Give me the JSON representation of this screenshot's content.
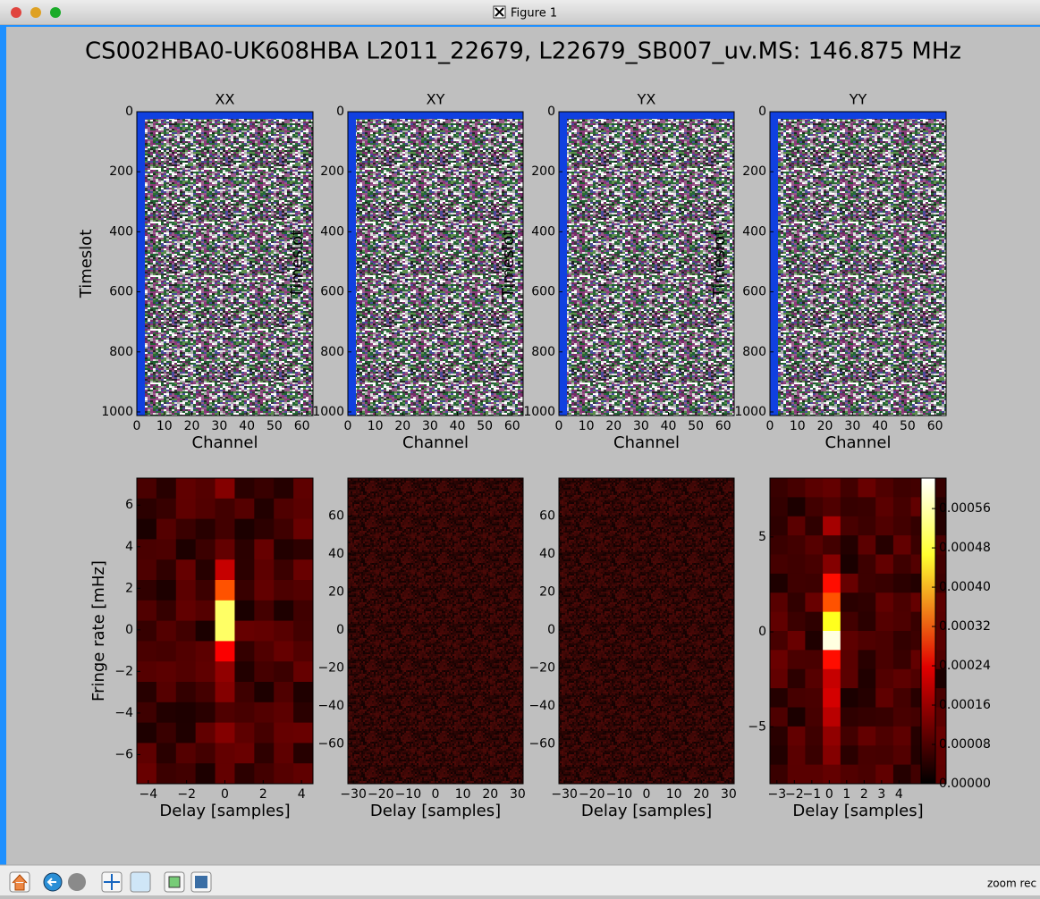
{
  "window": {
    "title": "Figure 1"
  },
  "figure": {
    "title": "CS002HBA0-UK608HBA L2011_22679, L22679_SB007_uv.MS: 146.875 MHz",
    "panels": [
      {
        "title": "XX",
        "xlabel": "Channel",
        "ylabel": "Timeslot",
        "xlim": [
          0,
          64
        ],
        "ylim": [
          1012,
          0
        ],
        "xticks": [
          0,
          10,
          20,
          30,
          40,
          50,
          60
        ],
        "yticks": [
          0,
          200,
          400,
          600,
          800,
          1000
        ]
      },
      {
        "title": "XY",
        "xlabel": "Channel",
        "ylabel": "Timeslot",
        "xlim": [
          0,
          64
        ],
        "ylim": [
          1012,
          0
        ],
        "xticks": [
          0,
          10,
          20,
          30,
          40,
          50,
          60
        ],
        "yticks": [
          0,
          200,
          400,
          600,
          800,
          1000
        ]
      },
      {
        "title": "YX",
        "xlabel": "Channel",
        "ylabel": "Timeslot",
        "xlim": [
          0,
          64
        ],
        "ylim": [
          1012,
          0
        ],
        "xticks": [
          0,
          10,
          20,
          30,
          40,
          50,
          60
        ],
        "yticks": [
          0,
          200,
          400,
          600,
          800,
          1000
        ]
      },
      {
        "title": "YY",
        "xlabel": "Channel",
        "ylabel": "Timeslot",
        "xlim": [
          0,
          64
        ],
        "ylim": [
          1012,
          0
        ],
        "xticks": [
          0,
          10,
          20,
          30,
          40,
          50,
          60
        ],
        "yticks": [
          0,
          200,
          400,
          600,
          800,
          1000
        ]
      },
      {
        "xlabel": "Delay [samples]",
        "ylabel": "Fringe rate [mHz]",
        "xlim": [
          -4.6,
          4.6
        ],
        "ylim": [
          -7.4,
          7.3
        ],
        "xticks": [
          {
            "value": -4,
            "label": "−4"
          },
          {
            "value": -2,
            "label": "−2"
          },
          0,
          2,
          4
        ],
        "yticks": [
          {
            "value": -6,
            "label": "−6"
          },
          {
            "value": -4,
            "label": "−4"
          },
          {
            "value": -2,
            "label": "−2"
          },
          0,
          2,
          4,
          6
        ]
      },
      {
        "xlabel": "Delay [samples]",
        "xlim": [
          -32,
          32
        ],
        "ylim": [
          -81,
          80
        ],
        "xticks": [
          {
            "value": -30,
            "label": "−30"
          },
          {
            "value": -20,
            "label": "−20"
          },
          {
            "value": -10,
            "label": "−10"
          },
          0,
          10,
          20,
          30
        ],
        "yticks": [
          {
            "value": -60,
            "label": "−60"
          },
          {
            "value": -40,
            "label": "−40"
          },
          {
            "value": -20,
            "label": "−20"
          },
          0,
          20,
          40,
          60
        ]
      },
      {
        "xlabel": "Delay [samples]",
        "xlim": [
          -32,
          32
        ],
        "ylim": [
          -81,
          80
        ],
        "xticks": [
          {
            "value": -30,
            "label": "−30"
          },
          {
            "value": -20,
            "label": "−20"
          },
          {
            "value": -10,
            "label": "−10"
          },
          0,
          10,
          20,
          30
        ],
        "yticks": [
          {
            "value": -60,
            "label": "−60"
          },
          {
            "value": -40,
            "label": "−40"
          },
          {
            "value": -20,
            "label": "−20"
          },
          0,
          20,
          40,
          60
        ]
      },
      {
        "xlabel": "Delay [samples]",
        "xlim": [
          -3.4,
          6.7
        ],
        "ylim": [
          -8,
          8.1
        ],
        "xticks": [
          {
            "value": -3,
            "label": "−3"
          },
          {
            "value": -2,
            "label": "−2"
          },
          {
            "value": -1,
            "label": "−1"
          },
          0,
          1,
          2,
          3,
          4
        ],
        "yticks": [
          {
            "value": -5,
            "label": "−5"
          },
          0,
          5
        ]
      }
    ],
    "colorbar": {
      "lim": [
        0,
        0.000622
      ],
      "ticks": [
        {
          "value": 0,
          "label": "0.00000"
        },
        {
          "value": 8e-05,
          "label": "0.00008"
        },
        {
          "value": 0.00016,
          "label": "0.00016"
        },
        {
          "value": 0.00024,
          "label": "0.00024"
        },
        {
          "value": 0.00032,
          "label": "0.00032"
        },
        {
          "value": 0.0004,
          "label": "0.00040"
        },
        {
          "value": 0.00048,
          "label": "0.00048"
        },
        {
          "value": 0.00056,
          "label": "0.00056"
        }
      ]
    }
  },
  "toolbar": {
    "status": "zoom rec"
  }
}
